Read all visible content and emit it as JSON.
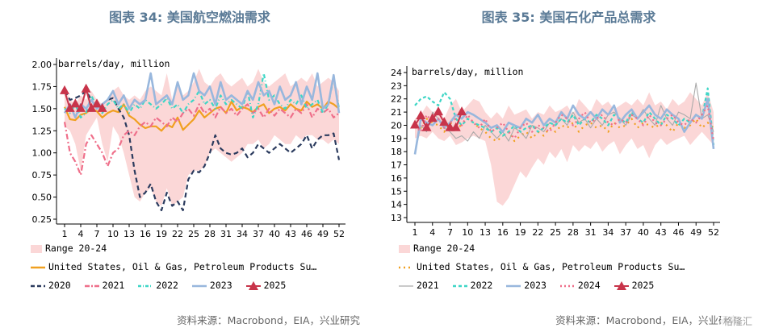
{
  "watermark": "格隆汇",
  "chart_data": [
    {
      "type": "line",
      "title": "图表 34: 美国航空燃油需求",
      "unit_label": "barrels/day, million",
      "source": "资料来源：Macrobond，EIA，兴业研究",
      "ylim": [
        0.25,
        2.0
      ],
      "yticks": [
        "0.25",
        "0.50",
        "0.75",
        "1.00",
        "1.25",
        "1.50",
        "1.75",
        "2.00"
      ],
      "xticks": [
        "1",
        "4",
        "7",
        "10",
        "13",
        "16",
        "19",
        "22",
        "25",
        "28",
        "31",
        "34",
        "37",
        "40",
        "43",
        "46",
        "49",
        "52"
      ],
      "colors": {
        "range": "#fbd7d7",
        "us": "#f0a020",
        "y2020": "#2b3b5e",
        "y2021": "#ef6f8a",
        "y2022": "#3ed6c6",
        "y2023": "#98b7dd",
        "y2025": "#c8344a"
      },
      "legend": {
        "range": "Range 20-24",
        "us": "United States, Oil & Gas, Petroleum Products Su…",
        "y2020": "2020",
        "y2021": "2021",
        "y2022": "2022",
        "y2023": "2023",
        "y2025": "2025"
      },
      "range_low": [
        1.3,
        1.25,
        1.1,
        0.8,
        1.2,
        1.3,
        1.4,
        1.1,
        0.9,
        1.3,
        1.2,
        1.0,
        0.75,
        0.5,
        0.45,
        0.55,
        0.6,
        0.45,
        0.4,
        0.6,
        0.4,
        0.45,
        0.5,
        0.75,
        0.8,
        0.8,
        0.85,
        1.0,
        1.05,
        1.0,
        0.95,
        0.9,
        0.95,
        1.0,
        1.1,
        1.1,
        1.15,
        1.05,
        1.1,
        1.2,
        1.15,
        1.1,
        1.1,
        1.2,
        1.15,
        1.2,
        1.2,
        1.15,
        1.15,
        1.1,
        1.15,
        1.1
      ],
      "range_high": [
        1.75,
        1.6,
        1.55,
        1.65,
        1.6,
        1.7,
        1.6,
        1.55,
        1.6,
        1.7,
        1.75,
        1.65,
        1.6,
        1.65,
        1.6,
        1.7,
        1.75,
        1.7,
        1.65,
        1.9,
        1.6,
        1.75,
        1.65,
        1.7,
        1.8,
        1.95,
        1.8,
        1.75,
        1.85,
        1.9,
        1.8,
        1.75,
        1.8,
        1.85,
        1.75,
        1.8,
        1.95,
        1.8,
        1.75,
        1.8,
        1.85,
        1.9,
        1.75,
        1.8,
        1.85,
        1.8,
        1.9,
        1.75,
        1.8,
        1.85,
        1.8,
        1.7
      ],
      "series": [
        {
          "key": "us",
          "values": [
            1.52,
            1.38,
            1.37,
            1.43,
            1.45,
            1.5,
            1.47,
            1.4,
            1.45,
            1.48,
            1.46,
            1.55,
            1.42,
            1.38,
            1.32,
            1.28,
            1.3,
            1.3,
            1.25,
            1.32,
            1.29,
            1.4,
            1.26,
            1.32,
            1.38,
            1.48,
            1.4,
            1.45,
            1.5,
            1.52,
            1.45,
            1.58,
            1.48,
            1.52,
            1.5,
            1.46,
            1.52,
            1.55,
            1.45,
            1.5,
            1.52,
            1.48,
            1.55,
            1.5,
            1.48,
            1.58,
            1.52,
            1.55,
            1.5,
            1.58,
            1.55,
            1.5
          ]
        },
        {
          "key": "y2020",
          "values": [
            1.7,
            1.6,
            1.62,
            1.65,
            1.7,
            1.6,
            1.5,
            1.55,
            1.6,
            1.62,
            1.5,
            1.4,
            1.2,
            0.8,
            0.5,
            0.55,
            0.65,
            0.45,
            0.35,
            0.55,
            0.4,
            0.45,
            0.35,
            0.7,
            0.8,
            0.78,
            0.85,
            1.0,
            1.2,
            1.05,
            1.0,
            0.98,
            1.0,
            1.05,
            0.95,
            1.0,
            1.1,
            1.05,
            1.0,
            1.05,
            1.1,
            1.05,
            1.0,
            1.05,
            1.1,
            1.2,
            1.05,
            1.15,
            1.2,
            1.2,
            1.22,
            0.92
          ]
        },
        {
          "key": "y2021",
          "values": [
            1.35,
            1.0,
            0.9,
            0.75,
            1.1,
            1.2,
            1.1,
            1.0,
            0.85,
            1.0,
            1.05,
            1.2,
            1.25,
            1.2,
            1.3,
            1.35,
            1.3,
            1.4,
            1.35,
            1.3,
            1.4,
            1.35,
            1.45,
            1.5,
            1.42,
            1.55,
            1.45,
            1.5,
            1.4,
            1.52,
            1.45,
            1.5,
            1.42,
            1.5,
            1.55,
            1.45,
            1.5,
            1.4,
            1.5,
            1.42,
            1.5,
            1.45,
            1.4,
            1.5,
            1.45,
            1.55,
            1.4,
            1.5,
            1.45,
            1.5,
            1.4,
            1.45
          ]
        },
        {
          "key": "y2022",
          "values": [
            1.5,
            1.45,
            1.55,
            1.4,
            1.45,
            1.65,
            1.5,
            1.45,
            1.55,
            1.6,
            1.5,
            1.55,
            1.45,
            1.55,
            1.5,
            1.6,
            1.55,
            1.5,
            1.55,
            1.62,
            1.5,
            1.55,
            1.45,
            1.55,
            1.6,
            1.7,
            1.55,
            1.6,
            1.5,
            1.65,
            1.55,
            1.6,
            1.55,
            1.5,
            1.7,
            1.4,
            1.55,
            1.9,
            1.6,
            1.65,
            1.55,
            1.5,
            1.6,
            1.55,
            1.65,
            1.5,
            1.55,
            1.6,
            1.45,
            1.55,
            1.85,
            1.5
          ]
        },
        {
          "key": "y2023",
          "values": [
            1.45,
            1.55,
            1.4,
            1.55,
            1.5,
            1.6,
            1.5,
            1.55,
            1.6,
            1.7,
            1.55,
            1.65,
            1.5,
            1.6,
            1.55,
            1.6,
            1.9,
            1.55,
            1.6,
            1.65,
            1.55,
            1.8,
            1.6,
            1.65,
            1.9,
            1.7,
            1.65,
            1.75,
            1.55,
            1.8,
            1.6,
            1.65,
            1.6,
            1.55,
            1.7,
            1.6,
            1.8,
            1.65,
            1.7,
            1.55,
            1.75,
            1.6,
            1.65,
            1.8,
            1.55,
            1.75,
            1.6,
            1.9,
            1.5,
            1.55,
            1.88,
            1.45
          ]
        },
        {
          "key": "y2025",
          "values": [
            1.7,
            1.5,
            1.55,
            1.5,
            1.72,
            1.5,
            1.55,
            1.5,
            null,
            null,
            null,
            null,
            null,
            null,
            null,
            null,
            null,
            null,
            null,
            null,
            null,
            null,
            null,
            null,
            null,
            null,
            null,
            null,
            null,
            null,
            null,
            null,
            null,
            null,
            null,
            null,
            null,
            null,
            null,
            null,
            null,
            null,
            null,
            null,
            null,
            null,
            null,
            null,
            null,
            null,
            null,
            null
          ]
        }
      ]
    },
    {
      "type": "line",
      "title": "图表 35: 美国石化产品总需求",
      "unit_label": "barrels/day, million",
      "source": "资料来源：Macrobond，EIA，兴业研究",
      "ylim": [
        13,
        24
      ],
      "yticks": [
        "13",
        "14",
        "15",
        "16",
        "17",
        "18",
        "19",
        "20",
        "21",
        "22",
        "23",
        "24"
      ],
      "xticks": [
        "1",
        "4",
        "7",
        "10",
        "13",
        "16",
        "19",
        "22",
        "25",
        "28",
        "31",
        "34",
        "37",
        "40",
        "43",
        "46",
        "49",
        "52"
      ],
      "colors": {
        "range": "#fbd7d7",
        "us": "#f0a020",
        "y2021": "#aaaaaa",
        "y2022": "#3ed6c6",
        "y2023": "#98b7dd",
        "y2024": "#ef6f8a",
        "y2025": "#c8344a"
      },
      "legend": {
        "range": "Range 20-24",
        "us": "United States, Oil & Gas, Petroleum Products Su…",
        "y2021": "2021",
        "y2022": "2022",
        "y2023": "2023",
        "y2024": "2024",
        "y2025": "2025"
      },
      "range_low": [
        19.0,
        19.2,
        19.0,
        19.5,
        19.0,
        18.8,
        19.2,
        18.5,
        18.7,
        19.0,
        19.2,
        19.0,
        18.8,
        17.0,
        14.2,
        13.9,
        14.5,
        15.5,
        16.5,
        16.0,
        16.8,
        17.5,
        17.0,
        18.0,
        17.5,
        18.2,
        17.2,
        18.5,
        18.0,
        18.5,
        18.2,
        18.8,
        18.0,
        18.5,
        18.8,
        17.8,
        18.5,
        19.0,
        18.2,
        18.5,
        17.5,
        18.5,
        19.0,
        18.5,
        18.8,
        19.0,
        19.2,
        18.5,
        19.0,
        19.5,
        19.0,
        18.5
      ],
      "range_high": [
        20.5,
        20.8,
        21.5,
        21.0,
        21.2,
        20.5,
        21.5,
        22.0,
        21.0,
        21.5,
        22.0,
        21.8,
        21.0,
        20.5,
        21.0,
        20.5,
        21.5,
        20.8,
        21.0,
        21.2,
        20.5,
        21.0,
        20.8,
        21.5,
        21.0,
        21.2,
        21.5,
        20.8,
        22.0,
        21.5,
        21.0,
        22.0,
        21.5,
        21.8,
        21.2,
        21.5,
        21.8,
        21.5,
        22.0,
        21.5,
        22.5,
        21.5,
        21.8,
        21.2,
        22.0,
        21.5,
        21.8,
        22.5,
        22.0,
        21.5,
        22.5,
        21.0
      ],
      "series": [
        {
          "key": "us",
          "values": [
            20.0,
            19.8,
            20.5,
            20.2,
            20.0,
            19.5,
            20.2,
            19.8,
            20.0,
            20.5,
            20.2,
            19.8,
            19.5,
            19.0,
            18.8,
            19.2,
            19.5,
            18.8,
            19.2,
            19.5,
            19.0,
            19.5,
            19.2,
            19.8,
            19.5,
            20.0,
            19.8,
            20.2,
            19.5,
            20.0,
            20.2,
            19.8,
            20.0,
            19.5,
            20.2,
            19.8,
            20.0,
            20.5,
            19.8,
            20.2,
            20.0,
            19.8,
            20.2,
            20.0,
            19.5,
            20.2,
            19.8,
            20.0,
            20.5,
            19.8,
            20.2,
            19.8
          ]
        },
        {
          "key": "y2021",
          "values": [
            17.8,
            20.0,
            19.5,
            21.0,
            20.5,
            19.8,
            19.5,
            19.0,
            19.2,
            18.8,
            19.5,
            19.0,
            20.0,
            19.5,
            19.0,
            19.5,
            18.8,
            19.8,
            19.5,
            19.0,
            20.0,
            19.8,
            19.5,
            20.2,
            20.0,
            20.5,
            20.0,
            21.0,
            20.2,
            20.5,
            19.8,
            20.5,
            20.0,
            20.8,
            21.0,
            20.5,
            20.0,
            20.8,
            20.5,
            21.2,
            20.5,
            20.0,
            21.5,
            20.5,
            20.0,
            21.0,
            20.8,
            20.5,
            23.2,
            20.5,
            20.8,
            19.5
          ]
        },
        {
          "key": "y2022",
          "values": [
            21.5,
            22.0,
            22.2,
            21.8,
            21.5,
            22.5,
            22.0,
            20.5,
            20.0,
            20.5,
            20.2,
            20.0,
            19.8,
            19.5,
            19.8,
            19.2,
            19.5,
            20.0,
            19.5,
            19.8,
            20.0,
            19.5,
            19.8,
            20.2,
            20.0,
            20.5,
            20.2,
            20.8,
            20.0,
            20.5,
            20.2,
            20.8,
            20.5,
            20.0,
            20.8,
            20.5,
            20.2,
            21.0,
            20.5,
            20.2,
            21.0,
            20.5,
            20.0,
            20.8,
            20.5,
            20.0,
            20.5,
            20.2,
            20.8,
            20.5,
            22.8,
            18.5
          ]
        },
        {
          "key": "y2023",
          "values": [
            17.8,
            20.5,
            20.2,
            20.0,
            20.5,
            19.8,
            20.2,
            20.8,
            20.5,
            21.0,
            20.8,
            20.5,
            20.2,
            19.8,
            20.0,
            19.5,
            20.2,
            20.0,
            19.8,
            20.5,
            20.2,
            20.8,
            20.0,
            20.5,
            20.2,
            21.0,
            20.5,
            21.5,
            20.8,
            20.5,
            21.0,
            20.5,
            21.2,
            20.8,
            21.5,
            20.2,
            20.8,
            21.2,
            20.5,
            21.0,
            21.5,
            20.8,
            20.5,
            21.2,
            20.8,
            20.5,
            19.5,
            20.2,
            20.8,
            20.5,
            22.0,
            18.2
          ]
        },
        {
          "key": "y2024",
          "values": [
            20.0,
            19.5,
            20.8,
            20.2,
            20.5,
            19.8,
            20.2,
            20.5,
            20.0,
            20.8,
            20.2,
            19.8,
            20.5,
            19.5,
            19.8,
            20.2,
            19.5,
            19.0,
            19.8,
            20.2,
            19.5,
            20.0,
            19.8,
            19.5,
            20.2,
            20.8,
            20.5,
            20.0,
            20.5,
            21.0,
            20.2,
            20.5,
            20.8,
            20.2,
            20.0,
            20.5,
            20.2,
            20.8,
            20.5,
            20.0,
            20.8,
            20.2,
            20.0,
            20.5,
            20.8,
            20.2,
            20.0,
            20.5,
            20.2,
            20.8,
            21.5,
            18.8
          ]
        },
        {
          "key": "y2025",
          "values": [
            20.0,
            20.7,
            19.8,
            20.5,
            21.0,
            20.2,
            19.8,
            19.8,
            21.0,
            null,
            null,
            null,
            null,
            null,
            null,
            null,
            null,
            null,
            null,
            null,
            null,
            null,
            null,
            null,
            null,
            null,
            null,
            null,
            null,
            null,
            null,
            null,
            null,
            null,
            null,
            null,
            null,
            null,
            null,
            null,
            null,
            null,
            null,
            null,
            null,
            null,
            null,
            null,
            null,
            null,
            null,
            null
          ]
        }
      ]
    }
  ]
}
